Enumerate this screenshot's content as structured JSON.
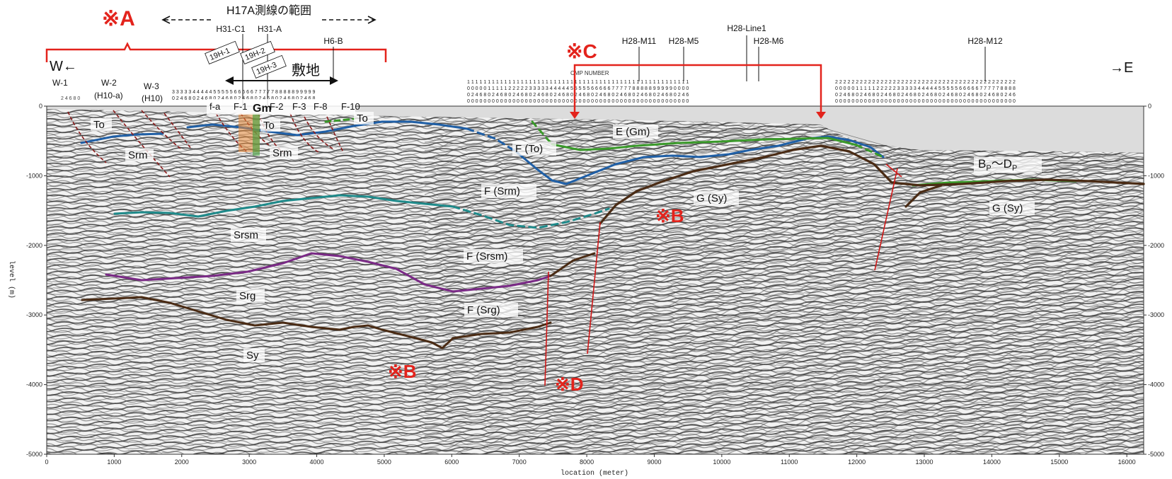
{
  "colors": {
    "red": "#e3231c",
    "blue": "#1f5fa6",
    "teal": "#1e8a8a",
    "purple": "#7a2a86",
    "brown": "#4a2b14",
    "green": "#3a9a2a",
    "fault": "#d01818",
    "seabed": "#dcdcdc"
  },
  "callouts": {
    "A": "※A",
    "B1": "※B",
    "B2": "※B",
    "C": "※C",
    "D": "※D"
  },
  "header": {
    "h17a_range": "H17A測線の範囲",
    "site": "敷地",
    "west": "W←",
    "east": "→E",
    "cmp_label": "CMP NUMBER"
  },
  "lines": [
    {
      "id": "l1",
      "label": "H31-C1"
    },
    {
      "id": "l2",
      "label": "H31-A"
    },
    {
      "id": "l3",
      "label": "H6-B"
    },
    {
      "id": "l4",
      "label": "H28-M11"
    },
    {
      "id": "l5",
      "label": "H28-M5"
    },
    {
      "id": "l6",
      "label": "H28-Line1"
    },
    {
      "id": "l7",
      "label": "H28-M6"
    },
    {
      "id": "l8",
      "label": "H28-M12"
    }
  ],
  "boreholes": [
    {
      "id": "b1",
      "label": "19H-1"
    },
    {
      "id": "b2",
      "label": "19H-2"
    },
    {
      "id": "b3",
      "label": "19H-3"
    }
  ],
  "wells": [
    {
      "id": "w1",
      "label": "W-1",
      "sub": ""
    },
    {
      "id": "w2",
      "label": "W-2",
      "sub": "(H10-a)"
    },
    {
      "id": "w3",
      "label": "W-3",
      "sub": "(H10)"
    }
  ],
  "faults_top": [
    "f-a",
    "F-1",
    "Gm",
    "F-2",
    "F-3",
    "F-8",
    "F-10"
  ],
  "units": {
    "to1": "To",
    "to2": "To",
    "to3": "To",
    "srm1": "Srm",
    "srm2": "Srm",
    "f_to": "F (To)",
    "e_gm": "E (Gm)",
    "f_srm": "F (Srm)",
    "g_sy1": "G (Sy)",
    "g_sy2": "G (Sy)",
    "bp_dp_a": "B",
    "bp_dp_sub1": "P",
    "bp_dp_tilde": "〜D",
    "bp_dp_sub2": "P",
    "srsm": "Srsm",
    "f_srsm": "F (Srsm)",
    "srg": "Srg",
    "f_srg": "F (Srg)",
    "sy": "Sy"
  },
  "axes": {
    "xlabel": "location (meter)",
    "ylabel": "level (m)",
    "x_ticks": [
      0,
      1000,
      2000,
      3000,
      4000,
      5000,
      6000,
      7000,
      8000,
      9000,
      10000,
      11000,
      12000,
      13000,
      14000,
      15000,
      16000
    ],
    "y_ticks": [
      0,
      -1000,
      -2000,
      -3000,
      -4000,
      -5000
    ],
    "x_range": [
      0,
      16250
    ],
    "y_range": [
      -5000,
      0
    ]
  }
}
